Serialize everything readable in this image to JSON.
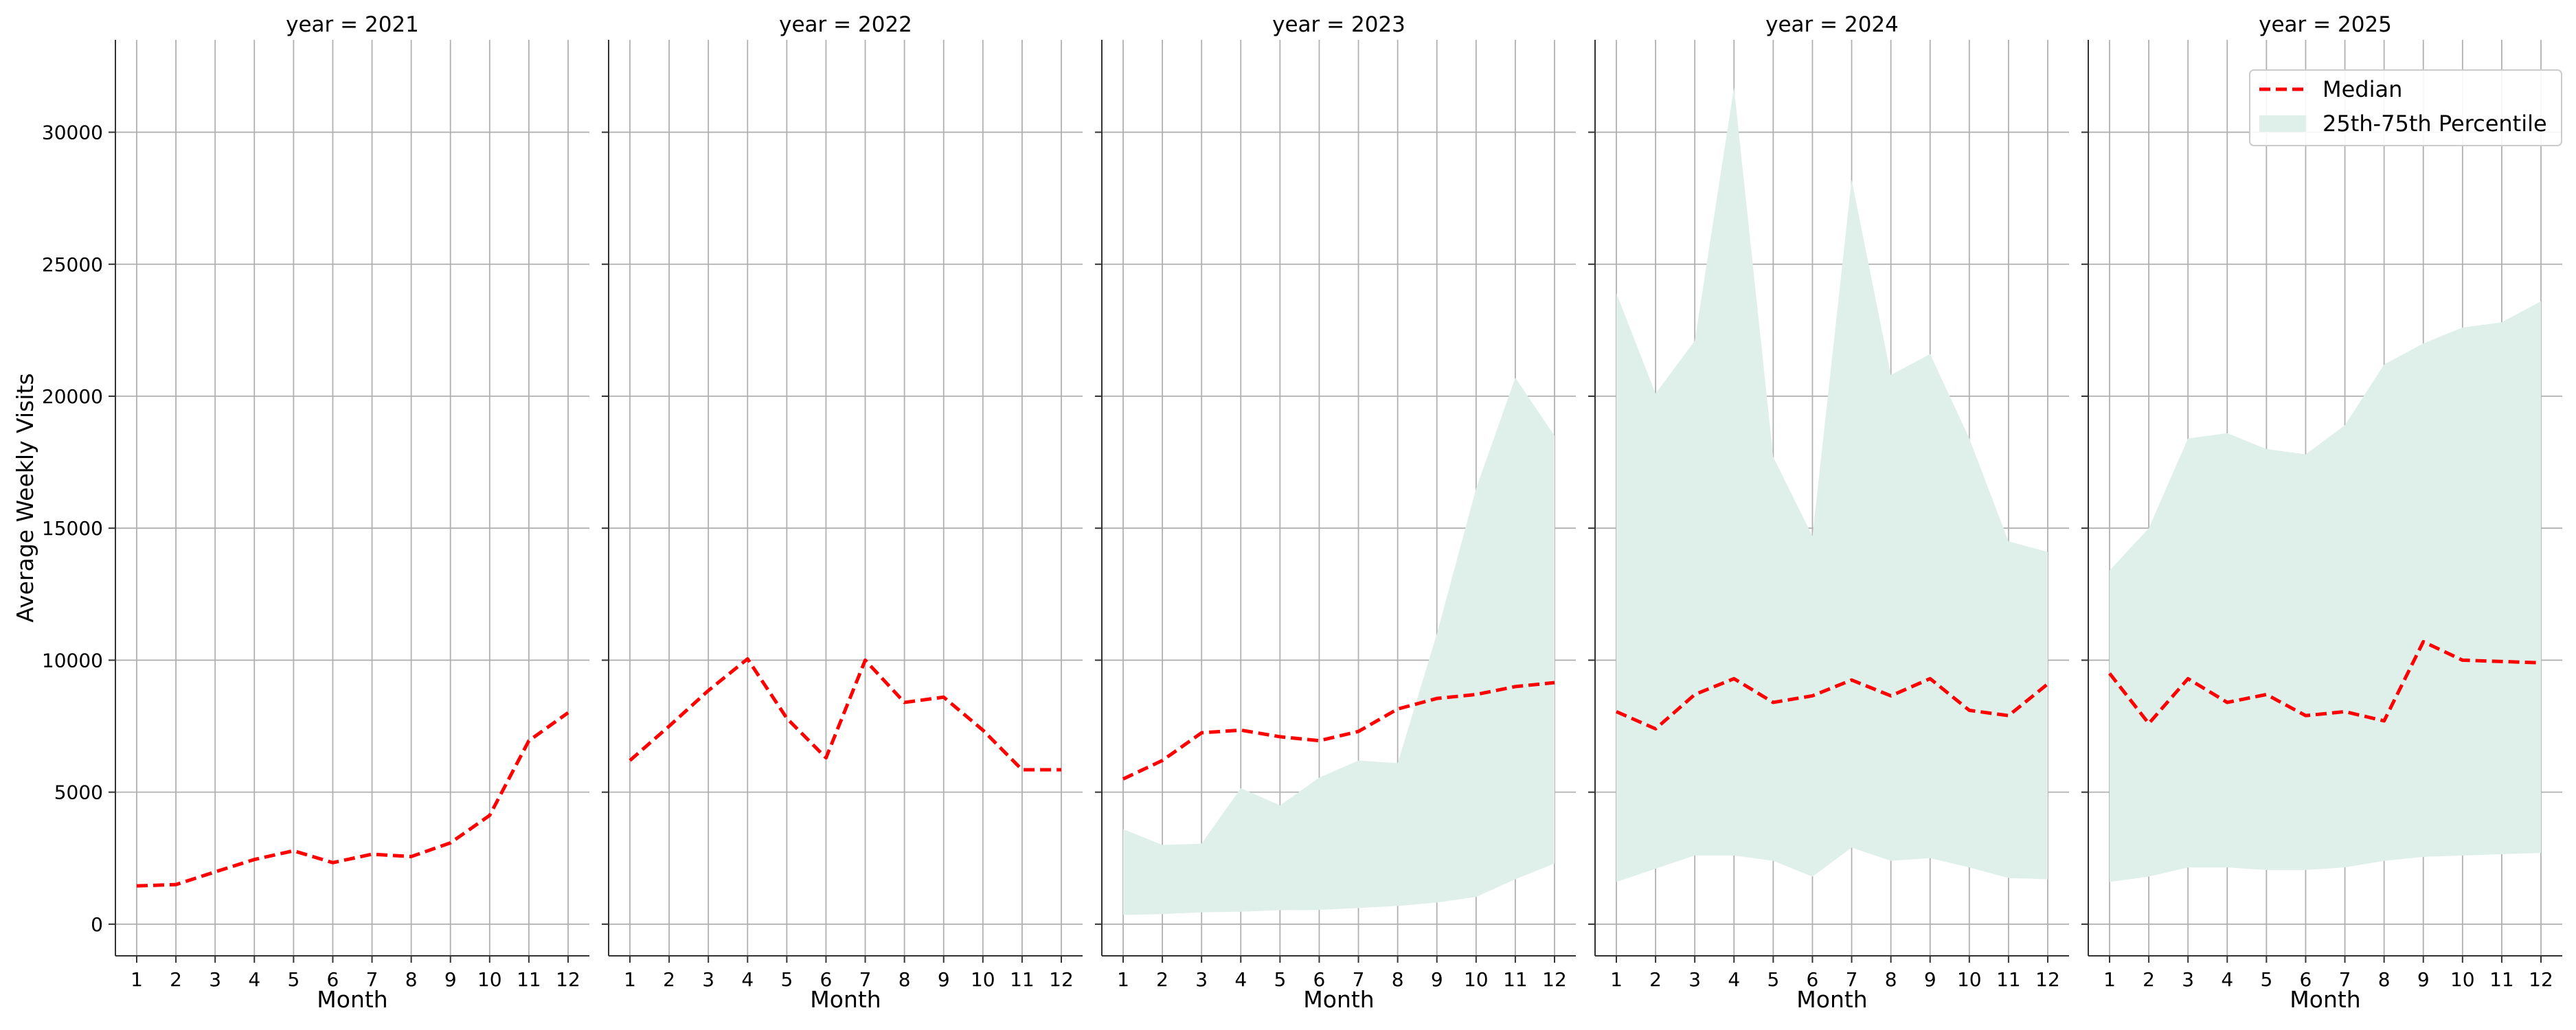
{
  "chart_data": {
    "type": "line",
    "ylabel": "Average Weekly Visits",
    "xlabel": "Month",
    "x": [
      1,
      2,
      3,
      4,
      5,
      6,
      7,
      8,
      9,
      10,
      11,
      12
    ],
    "ylim": [
      -1200,
      33500
    ],
    "yticks": [
      0,
      5000,
      10000,
      15000,
      20000,
      25000,
      30000
    ],
    "grid": true,
    "legend": {
      "placement": "top-right",
      "items": [
        {
          "label": "Median",
          "style": "dashed-line",
          "color": "#ff0000"
        },
        {
          "label": "25th-75th Percentile",
          "style": "band",
          "color": "#dff0ea"
        }
      ]
    },
    "panels": [
      {
        "title": "year = 2021",
        "median": [
          1450,
          1500,
          1980,
          2450,
          2780,
          2330,
          2650,
          2560,
          3080,
          4120,
          6950,
          8010
        ],
        "p25": null,
        "p75": null
      },
      {
        "title": "year = 2022",
        "median": [
          6200,
          7500,
          8850,
          10050,
          7800,
          6300,
          10000,
          8400,
          8600,
          7350,
          5850,
          5850
        ],
        "p25": null,
        "p75": null
      },
      {
        "title": "year = 2023",
        "median": [
          5500,
          6200,
          7250,
          7350,
          7100,
          6950,
          7300,
          8150,
          8550,
          8700,
          9000,
          9150
        ],
        "p25": [
          350,
          380,
          450,
          470,
          530,
          540,
          610,
          690,
          820,
          1030,
          1700,
          2300
        ],
        "p75": [
          3600,
          3000,
          3050,
          5150,
          4500,
          5550,
          6200,
          6100,
          11000,
          16500,
          20700,
          18500
        ]
      },
      {
        "title": "year = 2024",
        "median": [
          8050,
          7400,
          8700,
          9300,
          8400,
          8650,
          9250,
          8650,
          9300,
          8100,
          7900,
          9100
        ],
        "p25": [
          1600,
          2100,
          2600,
          2600,
          2400,
          1800,
          2900,
          2400,
          2500,
          2150,
          1750,
          1700
        ],
        "p75": [
          23900,
          20100,
          22100,
          31700,
          17700,
          14700,
          28200,
          20800,
          21600,
          18400,
          14500,
          14100
        ]
      },
      {
        "title": "year = 2025",
        "median": [
          9500,
          7600,
          9300,
          8400,
          8700,
          7900,
          8050,
          7700,
          10700,
          10000,
          9950,
          9900
        ],
        "p25": [
          1600,
          1800,
          2150,
          2150,
          2050,
          2050,
          2150,
          2400,
          2550,
          2600,
          2650,
          2700
        ],
        "p75": [
          13400,
          15000,
          18400,
          18600,
          18000,
          17800,
          18900,
          21200,
          22000,
          22600,
          22800,
          23600
        ]
      }
    ]
  }
}
